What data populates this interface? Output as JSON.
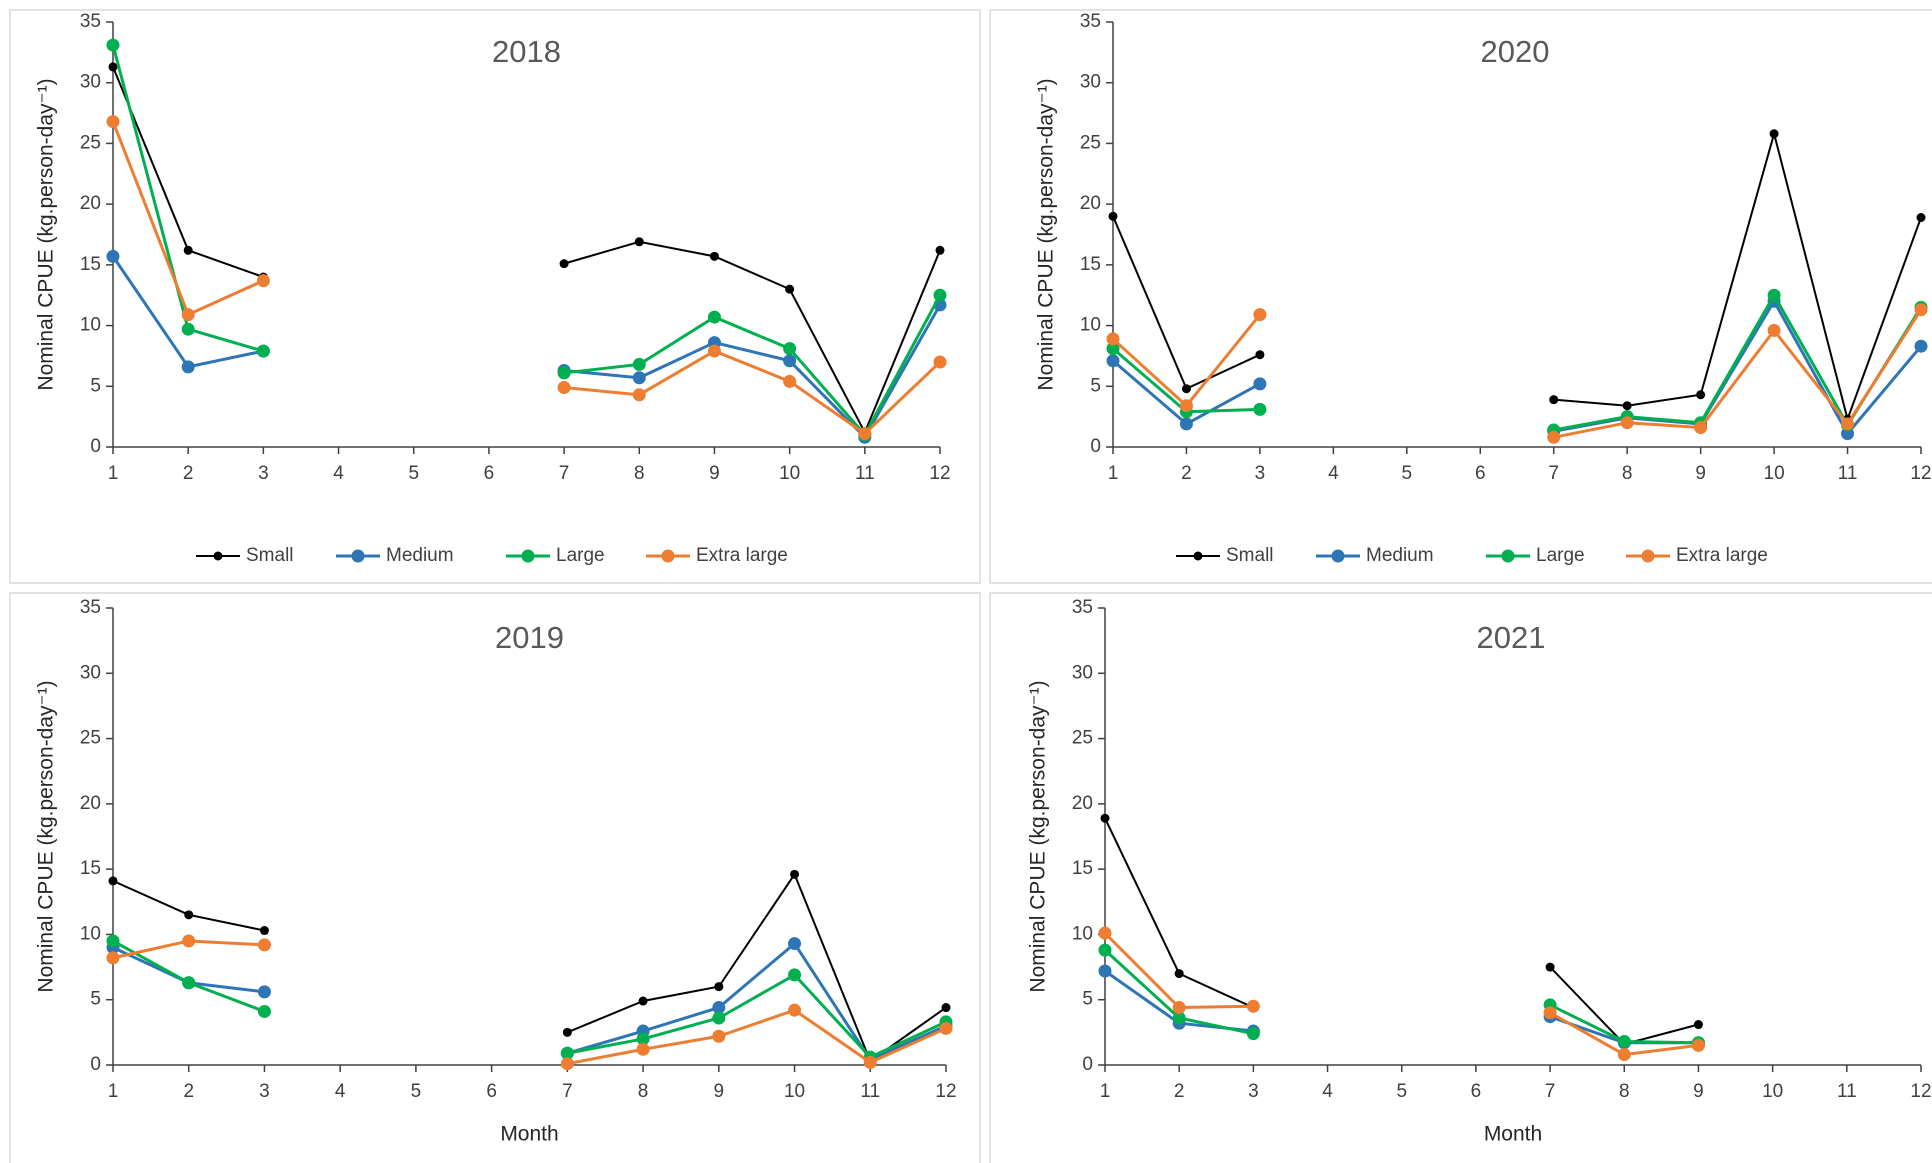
{
  "chart_data": [
    {
      "type": "line",
      "title": "2018",
      "y_label": "Nominal CPUE (kg.person-day⁻¹)",
      "x": [
        1,
        2,
        3,
        4,
        5,
        6,
        7,
        8,
        9,
        10,
        11,
        12
      ],
      "xlim": [
        1,
        12
      ],
      "xticks": [
        1,
        2,
        3,
        4,
        5,
        6,
        7,
        8,
        9,
        10,
        11,
        12
      ],
      "ylim": [
        0,
        35
      ],
      "yticks": [
        0,
        5,
        10,
        15,
        20,
        25,
        30,
        35
      ],
      "legend": "bottom",
      "series": [
        {
          "name": "Small",
          "color": "#000000",
          "values": [
            31.3,
            16.2,
            14.0,
            null,
            null,
            null,
            15.1,
            16.9,
            15.7,
            13.0,
            1.2,
            16.2
          ]
        },
        {
          "name": "Medium",
          "color": "#2e75b6",
          "values": [
            15.7,
            6.6,
            7.9,
            null,
            null,
            null,
            6.3,
            5.7,
            8.6,
            7.1,
            0.8,
            11.7
          ]
        },
        {
          "name": "Large",
          "color": "#00b050",
          "values": [
            33.1,
            9.7,
            7.9,
            null,
            null,
            null,
            6.1,
            6.8,
            10.7,
            8.1,
            1.0,
            12.5
          ]
        },
        {
          "name": "Extra large",
          "color": "#ed7d31",
          "values": [
            26.8,
            10.9,
            13.7,
            null,
            null,
            null,
            4.9,
            4.3,
            7.9,
            5.4,
            1.1,
            7.0
          ]
        }
      ]
    },
    {
      "type": "line",
      "title": "2020",
      "y_label": "Nominal CPUE (kg.person-day⁻¹)",
      "x": [
        1,
        2,
        3,
        4,
        5,
        6,
        7,
        8,
        9,
        10,
        11,
        12
      ],
      "xlim": [
        1,
        12
      ],
      "xticks": [
        1,
        2,
        3,
        4,
        5,
        6,
        7,
        8,
        9,
        10,
        11,
        12
      ],
      "ylim": [
        0,
        35
      ],
      "yticks": [
        0,
        5,
        10,
        15,
        20,
        25,
        30,
        35
      ],
      "legend": "bottom",
      "series": [
        {
          "name": "Small",
          "color": "#000000",
          "values": [
            19.0,
            4.8,
            7.6,
            null,
            null,
            null,
            3.9,
            3.4,
            4.3,
            25.8,
            2.3,
            18.9
          ]
        },
        {
          "name": "Medium",
          "color": "#2e75b6",
          "values": [
            7.1,
            1.9,
            5.2,
            null,
            null,
            null,
            1.3,
            2.4,
            1.9,
            12.0,
            1.1,
            8.3
          ]
        },
        {
          "name": "Large",
          "color": "#00b050",
          "values": [
            8.1,
            2.9,
            3.1,
            null,
            null,
            null,
            1.4,
            2.5,
            2.0,
            12.5,
            1.8,
            11.5
          ]
        },
        {
          "name": "Extra large",
          "color": "#ed7d31",
          "values": [
            8.9,
            3.4,
            10.9,
            null,
            null,
            null,
            0.8,
            2.0,
            1.6,
            9.6,
            1.9,
            11.3
          ]
        }
      ]
    },
    {
      "type": "line",
      "title": "2019",
      "y_label": "Nominal CPUE (kg.person-day⁻¹)",
      "x_label": "Month",
      "x": [
        1,
        2,
        3,
        4,
        5,
        6,
        7,
        8,
        9,
        10,
        11,
        12
      ],
      "xlim": [
        1,
        12
      ],
      "xticks": [
        1,
        2,
        3,
        4,
        5,
        6,
        7,
        8,
        9,
        10,
        11,
        12
      ],
      "ylim": [
        0,
        35
      ],
      "yticks": [
        0,
        5,
        10,
        15,
        20,
        25,
        30,
        35
      ],
      "series": [
        {
          "name": "Small",
          "color": "#000000",
          "values": [
            14.1,
            11.5,
            10.3,
            null,
            null,
            null,
            2.5,
            4.9,
            6.0,
            14.6,
            0.3,
            4.4
          ]
        },
        {
          "name": "Medium",
          "color": "#2e75b6",
          "values": [
            9.0,
            6.3,
            5.6,
            null,
            null,
            null,
            0.9,
            2.6,
            4.4,
            9.3,
            0.4,
            3.0
          ]
        },
        {
          "name": "Large",
          "color": "#00b050",
          "values": [
            9.5,
            6.3,
            4.1,
            null,
            null,
            null,
            0.9,
            2.0,
            3.6,
            6.9,
            0.6,
            3.3
          ]
        },
        {
          "name": "Extra large",
          "color": "#ed7d31",
          "values": [
            8.2,
            9.5,
            9.2,
            null,
            null,
            null,
            0.1,
            1.2,
            2.2,
            4.2,
            0.2,
            2.8
          ]
        }
      ]
    },
    {
      "type": "line",
      "title": "2021",
      "y_label": "Nominal CPUE (kg.person-day⁻¹)",
      "x_label": "Month",
      "x": [
        1,
        2,
        3,
        4,
        5,
        6,
        7,
        8,
        9,
        10,
        11,
        12
      ],
      "xlim": [
        1,
        12
      ],
      "xticks": [
        1,
        2,
        3,
        4,
        5,
        6,
        7,
        8,
        9,
        10,
        11,
        12
      ],
      "ylim": [
        0,
        35
      ],
      "yticks": [
        0,
        5,
        10,
        15,
        20,
        25,
        30,
        35
      ],
      "series": [
        {
          "name": "Small",
          "color": "#000000",
          "values": [
            18.9,
            7.0,
            4.4,
            null,
            null,
            null,
            7.5,
            1.6,
            3.1,
            null,
            null,
            null
          ]
        },
        {
          "name": "Medium",
          "color": "#2e75b6",
          "values": [
            7.2,
            3.2,
            2.6,
            null,
            null,
            null,
            3.7,
            1.7,
            1.7,
            null,
            null,
            null
          ]
        },
        {
          "name": "Large",
          "color": "#00b050",
          "values": [
            8.8,
            3.6,
            2.4,
            null,
            null,
            null,
            4.6,
            1.8,
            1.7,
            null,
            null,
            null
          ]
        },
        {
          "name": "Extra large",
          "color": "#ed7d31",
          "values": [
            10.1,
            4.4,
            4.5,
            null,
            null,
            null,
            4.0,
            0.8,
            1.5,
            null,
            null,
            null
          ]
        }
      ]
    }
  ]
}
